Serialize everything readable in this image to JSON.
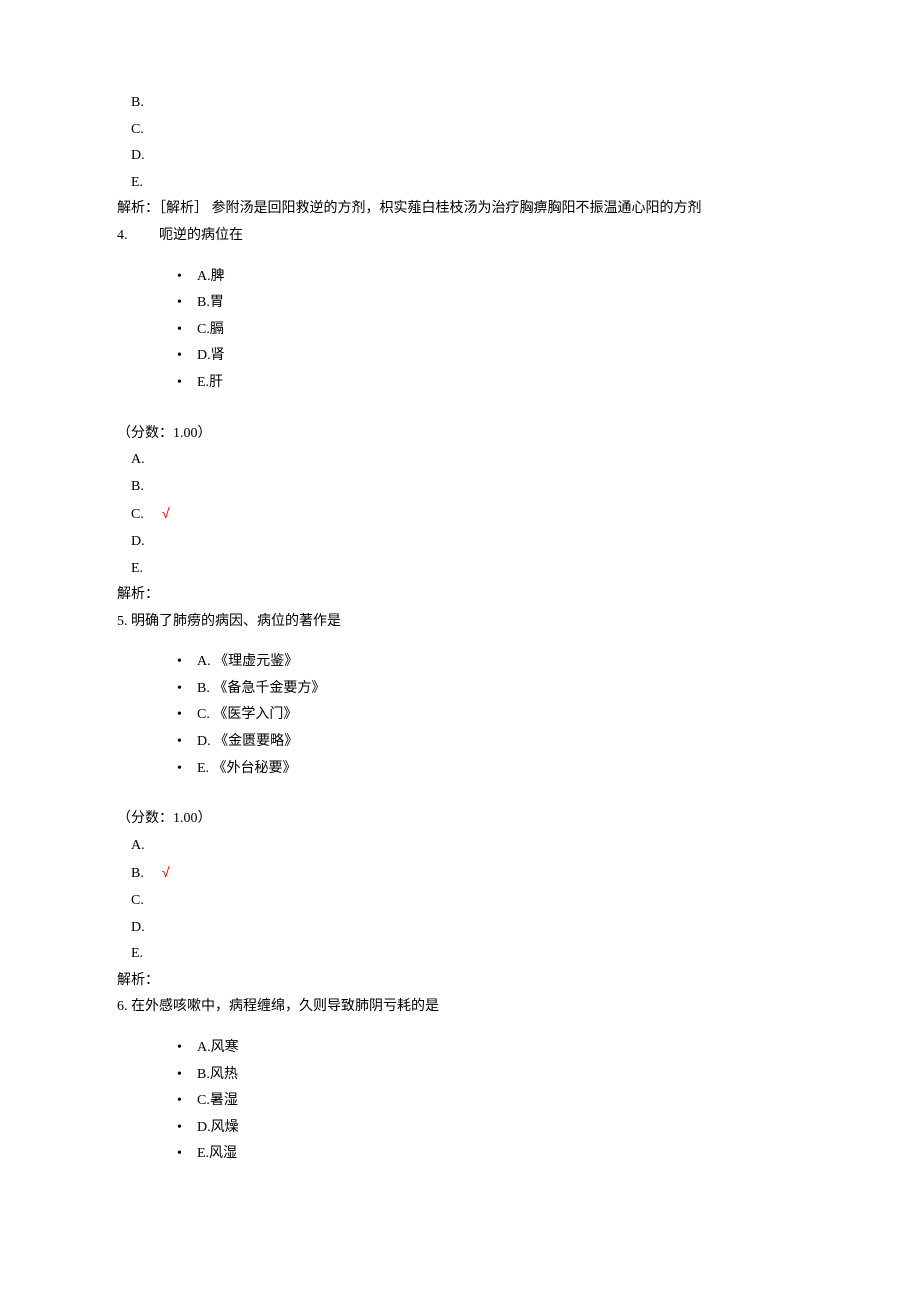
{
  "prev_tail": {
    "answers": [
      "B.",
      "C.",
      "D.",
      "E."
    ],
    "analysis": "解析：［解析］ 参附汤是回阳救逆的方剂，枳实薤白桂枝汤为治疗胸痹胸阳不振温通心阳的方剂"
  },
  "questions": [
    {
      "num": "4.",
      "stem": "　　呃逆的病位在",
      "options": [
        "A.脾",
        "B.胃",
        "C.膈",
        "D.肾",
        "E.肝"
      ],
      "score": "（分数：1.00）",
      "answers": [
        "A.",
        "B.",
        "C.",
        "D.",
        "E."
      ],
      "correct_index": 2,
      "analysis": "解析："
    },
    {
      "num": "5.",
      "stem": "明确了肺痨的病因、病位的著作是",
      "options": [
        "A. 《理虚元鉴》",
        "B. 《备急千金要方》",
        "C. 《医学入门》",
        "D. 《金匮要略》",
        "E. 《外台秘要》"
      ],
      "score": "（分数：1.00）",
      "answers": [
        "A.",
        "B.",
        "C.",
        "D.",
        "E."
      ],
      "correct_index": 1,
      "analysis": "解析："
    },
    {
      "num": "6.",
      "stem": "在外感咳嗽中，病程缠绵，久则导致肺阴亏耗的是",
      "options": [
        "A.风寒",
        "B.风热",
        "C.暑湿",
        "D.风燥",
        "E.风湿"
      ],
      "score": null,
      "answers": null,
      "correct_index": null,
      "analysis": null
    }
  ],
  "bullet": "•",
  "check_mark": "√"
}
